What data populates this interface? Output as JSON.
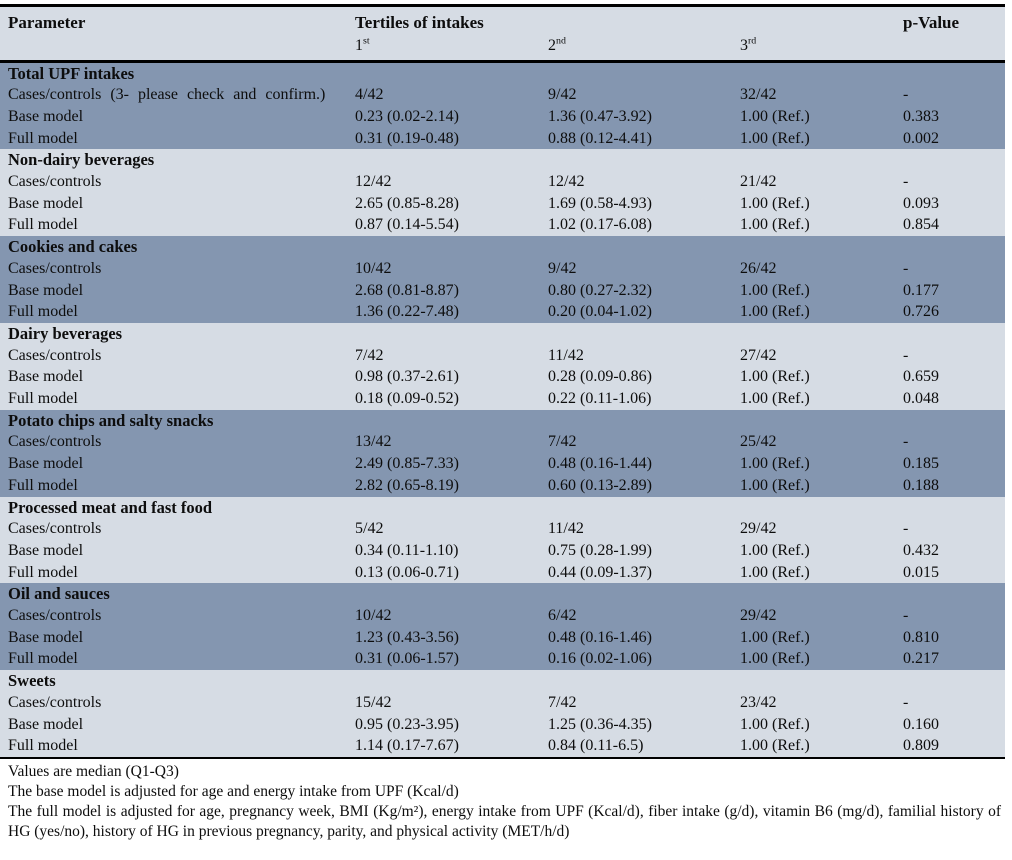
{
  "table": {
    "header": {
      "parameter_label": "Parameter",
      "tertiles_label": "Tertiles of intakes",
      "p_value_label": "p-Value",
      "tertile_headers": [
        {
          "num": "1",
          "sup": "st"
        },
        {
          "num": "2",
          "sup": "nd"
        },
        {
          "num": "3",
          "sup": "rd"
        }
      ]
    },
    "sections": [
      {
        "title": "Total UPF intakes",
        "rows": [
          {
            "label": "Cases/controls (3- please check and confirm.)",
            "t1": "4/42",
            "t2": "9/42",
            "t3": "32/42",
            "p": "-"
          },
          {
            "label": "Base model",
            "t1": "0.23 (0.02-2.14)",
            "t2": "1.36 (0.47-3.92)",
            "t3": "1.00 (Ref.)",
            "p": "0.383"
          },
          {
            "label": "Full model",
            "t1": "0.31 (0.19-0.48)",
            "t2": "0.88 (0.12-4.41)",
            "t3": "1.00 (Ref.)",
            "p": "0.002"
          }
        ]
      },
      {
        "title": "Non-dairy beverages",
        "rows": [
          {
            "label": "Cases/controls",
            "t1": "12/42",
            "t2": "12/42",
            "t3": "21/42",
            "p": "-"
          },
          {
            "label": "Base model",
            "t1": "2.65 (0.85-8.28)",
            "t2": "1.69 (0.58-4.93)",
            "t3": "1.00 (Ref.)",
            "p": "0.093"
          },
          {
            "label": "Full model",
            "t1": "0.87 (0.14-5.54)",
            "t2": "1.02 (0.17-6.08)",
            "t3": "1.00 (Ref.)",
            "p": "0.854"
          }
        ]
      },
      {
        "title": "Cookies and cakes",
        "rows": [
          {
            "label": "Cases/controls",
            "t1": "10/42",
            "t2": "9/42",
            "t3": "26/42",
            "p": "-"
          },
          {
            "label": "Base model",
            "t1": "2.68 (0.81-8.87)",
            "t2": "0.80 (0.27-2.32)",
            "t3": "1.00 (Ref.)",
            "p": "0.177"
          },
          {
            "label": "Full model",
            "t1": "1.36 (0.22-7.48)",
            "t2": "0.20 (0.04-1.02)",
            "t3": "1.00 (Ref.)",
            "p": "0.726"
          }
        ]
      },
      {
        "title": "Dairy beverages",
        "rows": [
          {
            "label": "Cases/controls",
            "t1": "7/42",
            "t2": "11/42",
            "t3": "27/42",
            "p": "-"
          },
          {
            "label": "Base model",
            "t1": "0.98 (0.37-2.61)",
            "t2": "0.28 (0.09-0.86)",
            "t3": "1.00 (Ref.)",
            "p": "0.659"
          },
          {
            "label": "Full model",
            "t1": "0.18 (0.09-0.52)",
            "t2": "0.22 (0.11-1.06)",
            "t3": "1.00 (Ref.)",
            "p": "0.048"
          }
        ]
      },
      {
        "title": "Potato chips and salty snacks",
        "rows": [
          {
            "label": "Cases/controls",
            "t1": "13/42",
            "t2": "7/42",
            "t3": "25/42",
            "p": "-"
          },
          {
            "label": "Base model",
            "t1": "2.49 (0.85-7.33)",
            "t2": "0.48 (0.16-1.44)",
            "t3": "1.00 (Ref.)",
            "p": "0.185"
          },
          {
            "label": "Full model",
            "t1": "2.82 (0.65-8.19)",
            "t2": "0.60 (0.13-2.89)",
            "t3": "1.00 (Ref.)",
            "p": "0.188"
          }
        ]
      },
      {
        "title": "Processed meat and fast food",
        "rows": [
          {
            "label": "Cases/controls",
            "t1": "5/42",
            "t2": "11/42",
            "t3": "29/42",
            "p": "-"
          },
          {
            "label": "Base model",
            "t1": "0.34 (0.11-1.10)",
            "t2": "0.75 (0.28-1.99)",
            "t3": "1.00 (Ref.)",
            "p": "0.432"
          },
          {
            "label": "Full model",
            "t1": "0.13 (0.06-0.71)",
            "t2": "0.44 (0.09-1.37)",
            "t3": "1.00 (Ref.)",
            "p": "0.015"
          }
        ]
      },
      {
        "title": "Oil and sauces",
        "rows": [
          {
            "label": "Cases/controls",
            "t1": "10/42",
            "t2": "6/42",
            "t3": "29/42",
            "p": "-"
          },
          {
            "label": "Base model",
            "t1": "1.23 (0.43-3.56)",
            "t2": "0.48 (0.16-1.46)",
            "t3": "1.00 (Ref.)",
            "p": "0.810"
          },
          {
            "label": "Full model",
            "t1": "0.31 (0.06-1.57)",
            "t2": "0.16 (0.02-1.06)",
            "t3": "1.00 (Ref.)",
            "p": "0.217"
          }
        ]
      },
      {
        "title": "Sweets",
        "rows": [
          {
            "label": "Cases/controls",
            "t1": "15/42",
            "t2": "7/42",
            "t3": "23/42",
            "p": "-"
          },
          {
            "label": "Base model",
            "t1": "0.95 (0.23-3.95)",
            "t2": "1.25 (0.36-4.35)",
            "t3": "1.00 (Ref.)",
            "p": "0.160"
          },
          {
            "label": "Full model",
            "t1": "1.14 (0.17-7.67)",
            "t2": "0.84 (0.11-6.5)",
            "t3": "1.00 (Ref.)",
            "p": "0.809"
          }
        ]
      }
    ]
  },
  "footnotes": [
    "Values are median (Q1-Q3)",
    "The base model is adjusted for age and energy intake from UPF (Kcal/d)",
    "The full model is adjusted for age, pregnancy week, BMI (Kg/m²), energy intake from UPF (Kcal/d), fiber intake (g/d), vitamin B6 (mg/d), familial history of HG (yes/no), history of HG in previous pregnancy, parity, and physical activity (MET/h/d)"
  ],
  "colors": {
    "section_dark": "#8496B0",
    "section_light": "#D6DCE4",
    "header_bg": "#D6DCE4",
    "border": "#000000"
  }
}
